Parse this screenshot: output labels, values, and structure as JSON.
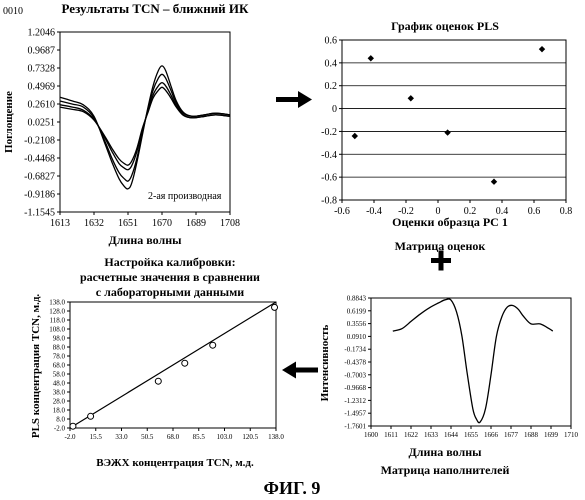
{
  "page_number": "0010",
  "figure_label": "ФИГ. 9",
  "chart_data": [
    {
      "type": "line",
      "title": "Результаты TCN – ближний ИК",
      "xlabel": "Длина волны",
      "ylabel": "Поглощение",
      "annotation": "2-ая производная",
      "xlim": [
        1613,
        1708
      ],
      "ylim": [
        -1.1545,
        1.2046
      ],
      "xticks": [
        "1613",
        "1632",
        "1651",
        "1670",
        "1689",
        "1708"
      ],
      "yticks": [
        "1.2046",
        "0.9687",
        "0.7328",
        "0.4969",
        "0.2610",
        "0.0251",
        "-0.2108",
        "-0.4468",
        "-0.6827",
        "-0.9186",
        "-1.1545"
      ],
      "x": [
        1613,
        1620,
        1626,
        1632,
        1638,
        1642,
        1646,
        1649,
        1651,
        1653,
        1656,
        1659,
        1662,
        1665,
        1668,
        1670,
        1672,
        1675,
        1678,
        1682,
        1687,
        1694,
        1700,
        1708
      ],
      "series": [
        {
          "values": [
            0.35,
            0.3,
            0.25,
            0.1,
            -0.25,
            -0.5,
            -0.72,
            -0.82,
            -0.85,
            -0.78,
            -0.5,
            -0.15,
            0.2,
            0.5,
            0.7,
            0.76,
            0.7,
            0.5,
            0.3,
            0.15,
            0.1,
            0.12,
            0.14,
            0.12
          ]
        },
        {
          "values": [
            0.3,
            0.26,
            0.22,
            0.08,
            -0.22,
            -0.45,
            -0.64,
            -0.72,
            -0.75,
            -0.68,
            -0.45,
            -0.12,
            0.18,
            0.44,
            0.6,
            0.65,
            0.6,
            0.44,
            0.27,
            0.14,
            0.1,
            0.12,
            0.14,
            0.12
          ]
        },
        {
          "values": [
            0.25,
            0.22,
            0.18,
            0.06,
            -0.18,
            -0.36,
            -0.52,
            -0.58,
            -0.6,
            -0.55,
            -0.36,
            -0.08,
            0.16,
            0.38,
            0.5,
            0.54,
            0.5,
            0.38,
            0.24,
            0.12,
            0.08,
            0.1,
            0.12,
            0.1
          ]
        },
        {
          "values": [
            0.22,
            0.19,
            0.16,
            0.05,
            -0.16,
            -0.32,
            -0.46,
            -0.52,
            -0.54,
            -0.49,
            -0.32,
            -0.06,
            0.14,
            0.34,
            0.44,
            0.48,
            0.44,
            0.34,
            0.22,
            0.11,
            0.08,
            0.1,
            0.12,
            0.1
          ]
        }
      ]
    },
    {
      "type": "scatter",
      "title": "График оценок PLS",
      "xlabel": "Оценки образца PC 1",
      "ylabel": "",
      "xlim": [
        -0.6,
        0.8
      ],
      "ylim": [
        -0.8,
        0.6
      ],
      "xticks": [
        "-0.6",
        "-0.4",
        "-0.2",
        "0",
        "0.2",
        "0.4",
        "0.6",
        "0.8"
      ],
      "yticks": [
        "0.6",
        "0.4",
        "0.2",
        "0",
        "-0.2",
        "-0.4",
        "-0.6",
        "-0.8"
      ],
      "points": [
        {
          "x": -0.52,
          "y": -0.24
        },
        {
          "x": -0.42,
          "y": 0.44
        },
        {
          "x": -0.17,
          "y": 0.09
        },
        {
          "x": 0.06,
          "y": -0.21
        },
        {
          "x": 0.35,
          "y": -0.64
        },
        {
          "x": 0.65,
          "y": 0.52
        }
      ]
    },
    {
      "type": "scatter",
      "title": "Настройка калибровки: расчетные значения в сравнении с лабораторными данными",
      "title_lines": [
        "Настройка калибровки:",
        "расчетные значения в сравнении",
        "с лабораторными данными"
      ],
      "xlabel": "ВЭЖХ концентрация TCN, м.д.",
      "ylabel": "PLS концентрация TCN, м.д.",
      "xlim": [
        -2.0,
        138.0
      ],
      "ylim": [
        -2.0,
        138.0
      ],
      "xticks": [
        "-2.0",
        "15.5",
        "33.0",
        "50.5",
        "68.0",
        "85.5",
        "103.0",
        "120.5",
        "138.0"
      ],
      "yticks": [
        "138.0",
        "128.0",
        "118.0",
        "108.0",
        "98.0",
        "88.0",
        "78.0",
        "68.0",
        "58.0",
        "48.0",
        "38.0",
        "28.0",
        "18.0",
        "8.0",
        "-2.0"
      ],
      "points": [
        {
          "x": 0.0,
          "y": 0.0
        },
        {
          "x": 12.0,
          "y": 11.0
        },
        {
          "x": 58.0,
          "y": 50.0
        },
        {
          "x": 76.0,
          "y": 70.0
        },
        {
          "x": 95.0,
          "y": 90.0
        },
        {
          "x": 137.0,
          "y": 132.0
        }
      ],
      "fit_line": [
        {
          "x": -2.0,
          "y": -2.0
        },
        {
          "x": 138.0,
          "y": 138.0
        }
      ]
    },
    {
      "type": "line",
      "title": "Матрица оценок",
      "subtitle": "Матрица наполнителей",
      "xlabel": "Длина волны",
      "ylabel": "Интенсивность",
      "xlim": [
        1600,
        1710
      ],
      "ylim": [
        -1.7601,
        0.8843
      ],
      "xticks": [
        "1600",
        "1611",
        "1622",
        "1633",
        "1644",
        "1655",
        "1666",
        "1677",
        "1688",
        "1699",
        "1710"
      ],
      "yticks": [
        "0.8843",
        "0.6199",
        "0.3556",
        "0.0910",
        "-0.1734",
        "-0.4378",
        "-0.7003",
        "-0.9668",
        "-1.2312",
        "-1.4957",
        "-1.7601"
      ],
      "x": [
        1612,
        1617,
        1622,
        1627,
        1632,
        1637,
        1641,
        1644,
        1647,
        1650,
        1653,
        1656,
        1658,
        1660,
        1663,
        1666,
        1669,
        1672,
        1675,
        1678,
        1681,
        1684,
        1688,
        1693,
        1698,
        1700
      ],
      "series": [
        {
          "values": [
            0.2,
            0.25,
            0.4,
            0.55,
            0.68,
            0.78,
            0.85,
            0.84,
            0.6,
            0.1,
            -0.7,
            -1.4,
            -1.62,
            -1.68,
            -1.4,
            -0.7,
            0.1,
            0.5,
            0.7,
            0.73,
            0.65,
            0.5,
            0.35,
            0.35,
            0.25,
            0.2
          ]
        }
      ]
    }
  ]
}
